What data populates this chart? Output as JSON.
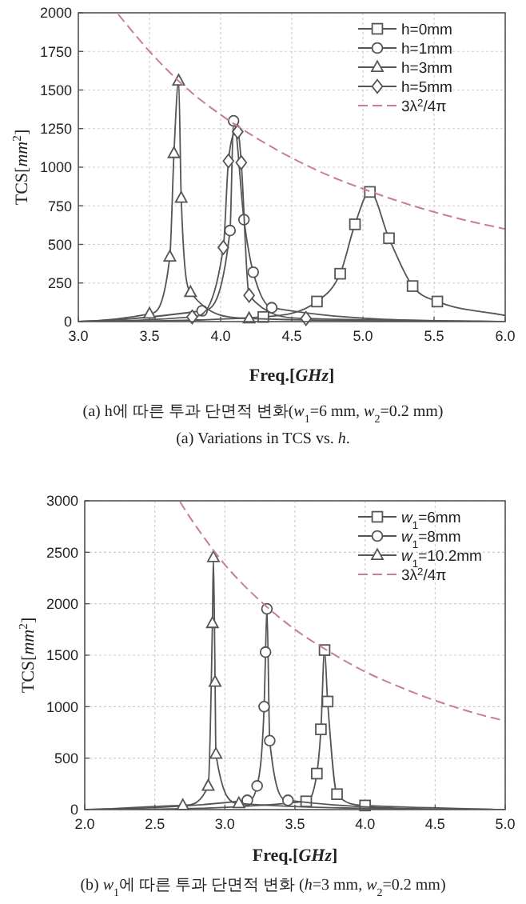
{
  "chart_data": [
    {
      "type": "line",
      "xlabel": "Freq.[*GHz*]",
      "ylabel": "TCS[*mm*$^{2}$]",
      "annotations": [
        "(a) h에 따른 투과 단면적 변화(*w*$_{1}$=6 mm, *w*$_{2}$=0.2 mm)",
        "(a) Variations in TCS vs. *h*."
      ],
      "xlim": [
        3.0,
        6.0
      ],
      "xticks": [
        {
          "value": 3.0,
          "label": "3.0"
        },
        {
          "value": 3.5,
          "label": "3.5"
        },
        {
          "value": 4.0,
          "label": "4.0"
        },
        {
          "value": 4.5,
          "label": "4.5"
        },
        {
          "value": 5.0,
          "label": "5.0"
        },
        {
          "value": 5.5,
          "label": "5.5"
        },
        {
          "value": 6.0,
          "label": "6.0"
        }
      ],
      "ylim": [
        0,
        2000
      ],
      "yticks": [
        0,
        250,
        500,
        750,
        1000,
        1250,
        1500,
        1750,
        2000
      ],
      "grid": true,
      "legend": "top right",
      "series": [
        {
          "name": "h=0mm",
          "color": "#555555",
          "marker": "square",
          "x": [
            3.0,
            4.3,
            4.677,
            4.84,
            4.944,
            5.049,
            5.183,
            5.349,
            5.523,
            6.0
          ],
          "values": [
            0,
            30,
            130,
            310,
            630,
            840,
            540,
            230,
            130,
            40
          ]
        },
        {
          "name": "h=1mm",
          "color": "#555555",
          "marker": "circle",
          "x": [
            3.0,
            3.87,
            4.066,
            4.091,
            4.164,
            4.229,
            4.359,
            6.0
          ],
          "values": [
            0,
            70,
            590,
            1300,
            660,
            320,
            90,
            0
          ]
        },
        {
          "name": "h=3mm",
          "color": "#555555",
          "marker": "triangle",
          "x": [
            3.0,
            3.5,
            3.643,
            3.672,
            3.705,
            3.723,
            3.788,
            4.2,
            6.0
          ],
          "values": [
            0,
            50,
            420,
            1090,
            1560,
            800,
            190,
            20,
            0
          ]
        },
        {
          "name": "h=5mm",
          "color": "#555555",
          "marker": "diamond",
          "x": [
            3.0,
            3.8,
            4.019,
            4.055,
            4.12,
            4.145,
            4.2,
            4.6,
            6.0
          ],
          "values": [
            0,
            30,
            480,
            1040,
            1230,
            1030,
            170,
            20,
            0
          ]
        },
        {
          "name": "3λ$^{2}$/4π",
          "color": "#c87f8f",
          "marker": "none",
          "line_style": "dashed",
          "x": [
            3.28,
            3.5,
            3.75,
            4.0,
            4.25,
            4.5,
            4.75,
            5.0,
            5.25,
            5.5,
            5.75,
            6.0
          ],
          "values": [
            1990,
            1750,
            1520,
            1340,
            1190,
            1060,
            950,
            860,
            780,
            710,
            650,
            600
          ]
        }
      ]
    },
    {
      "type": "line",
      "xlabel": "Freq.[*GHz*]",
      "ylabel": "TCS[*mm*$^{2}$]",
      "annotations": [
        "(b) *w*$_{1}$에 따른 투과 단면적 변화 (*h*=3 mm, *w*$_{2}$=0.2 mm)"
      ],
      "xlim": [
        2.0,
        5.0
      ],
      "xticks": [
        {
          "value": 2.0,
          "label": "2.0"
        },
        {
          "value": 2.5,
          "label": "2.5"
        },
        {
          "value": 3.0,
          "label": "3.0"
        },
        {
          "value": 3.5,
          "label": "3.5"
        },
        {
          "value": 4.0,
          "label": "4.0"
        },
        {
          "value": 4.5,
          "label": "4.5"
        },
        {
          "value": 5.0,
          "label": "5.0"
        }
      ],
      "ylim": [
        0,
        3000
      ],
      "yticks": [
        0,
        500,
        1000,
        1500,
        2000,
        2500,
        3000
      ],
      "grid": true,
      "legend": "top right",
      "series": [
        {
          "name": "*w*$_{1}$=6mm",
          "color": "#555555",
          "marker": "square",
          "x": [
            2.0,
            3.58,
            3.656,
            3.685,
            3.711,
            3.733,
            3.8,
            4.0,
            5.0
          ],
          "values": [
            0,
            80,
            350,
            780,
            1550,
            1050,
            150,
            40,
            0
          ]
        },
        {
          "name": "*w*$_{1}$=8mm",
          "color": "#555555",
          "marker": "circle",
          "x": [
            2.0,
            3.16,
            3.23,
            3.28,
            3.29,
            3.3,
            3.32,
            3.45,
            5.0
          ],
          "values": [
            0,
            90,
            230,
            1000,
            1530,
            1950,
            670,
            90,
            0
          ]
        },
        {
          "name": "*w*$_{1}$=10.2mm",
          "color": "#555555",
          "marker": "triangle",
          "x": [
            2.0,
            2.7,
            2.881,
            2.911,
            2.918,
            2.93,
            2.936,
            3.1,
            5.0
          ],
          "values": [
            0,
            40,
            230,
            1810,
            2450,
            1240,
            540,
            60,
            0
          ]
        },
        {
          "name": "3λ$^{2}$/4π",
          "color": "#c87f8f",
          "marker": "none",
          "line_style": "dashed",
          "x": [
            2.68,
            2.75,
            3.0,
            3.25,
            3.5,
            3.75,
            4.0,
            4.25,
            4.5,
            4.75,
            5.0
          ],
          "values": [
            2990,
            2840,
            2380,
            2030,
            1750,
            1530,
            1340,
            1190,
            1060,
            950,
            860
          ]
        }
      ]
    }
  ]
}
